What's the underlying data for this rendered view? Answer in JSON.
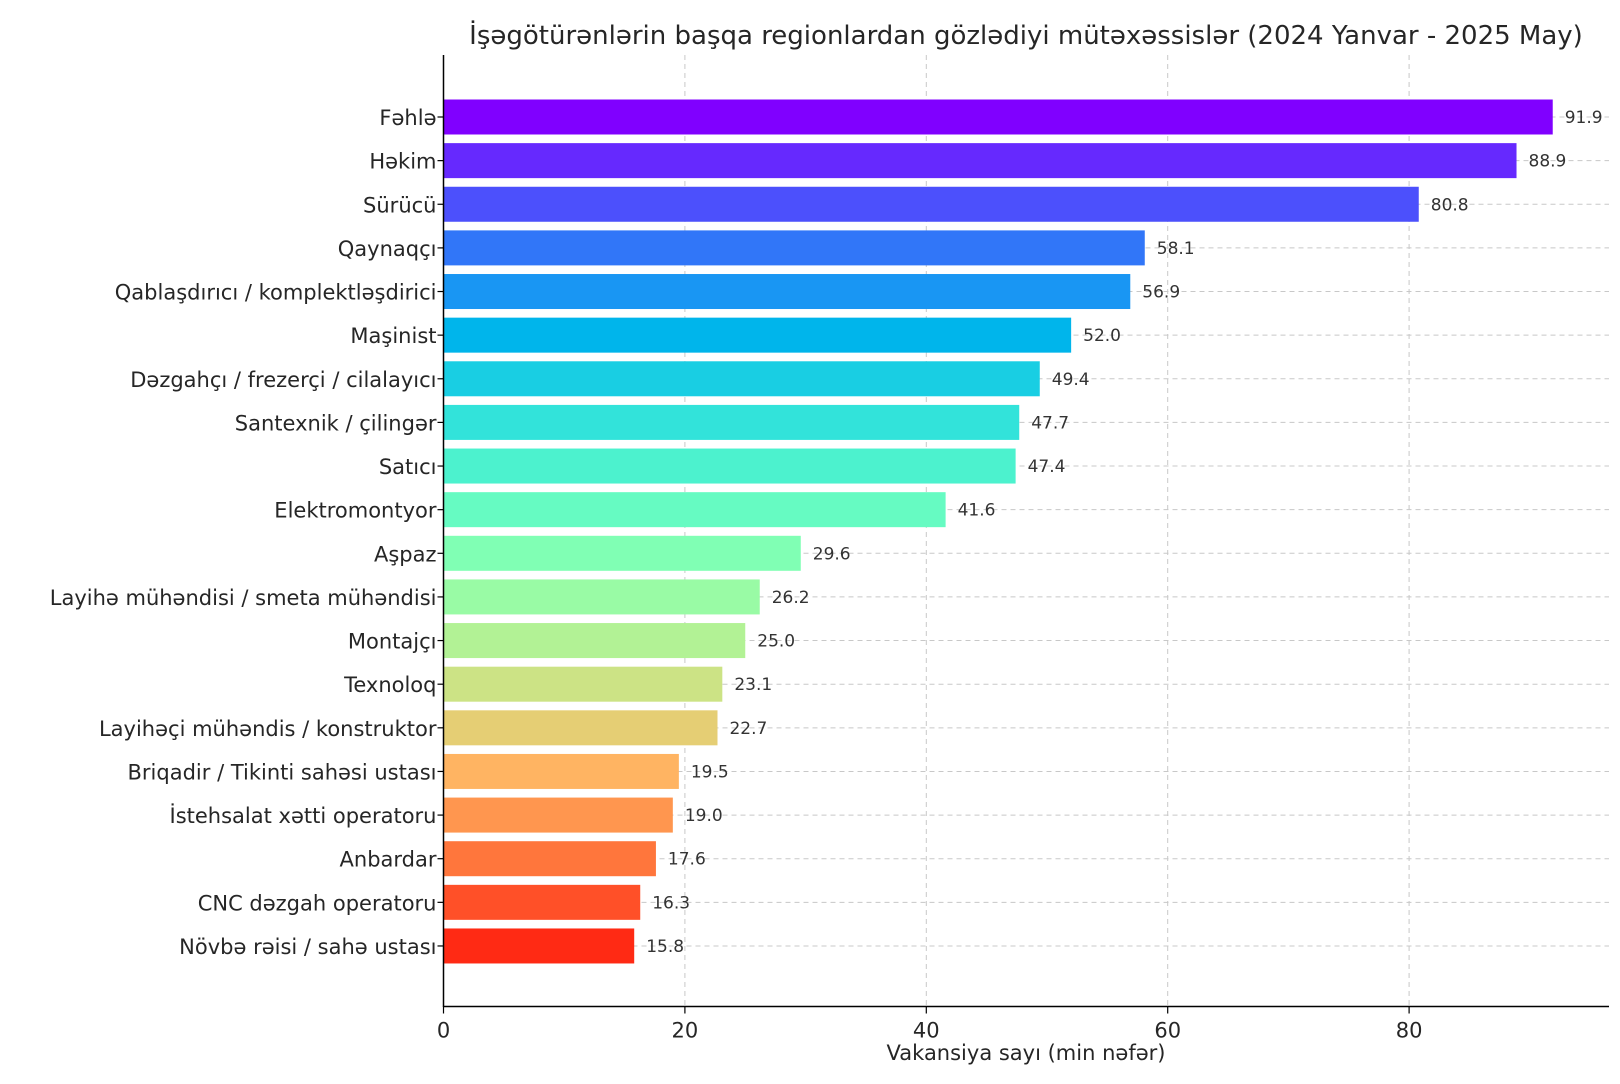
{
  "chart_data": {
    "type": "bar",
    "orientation": "horizontal",
    "title": "İşəgötürənlərin başqa regionlardan gözlədiyi mütəxəssislər (2024 Yanvar - 2025 May)",
    "xlabel": "Vakansiya sayı (min nəfər)",
    "ylabel": "",
    "xlim": [
      0,
      96.5
    ],
    "xticks": [
      0,
      20,
      40,
      60,
      80
    ],
    "grid": true,
    "categories": [
      "Fəhlə",
      "Həkim",
      "Sürücü",
      "Qaynaqçı",
      "Qablaşdırıcı / komplektləşdirici",
      "Maşinist",
      "Dəzgahçı / frezerçi / cilalayıcı",
      "Santexnik / çilingər",
      "Satıcı",
      "Elektromontyor",
      "Aşpaz",
      "Layihə mühəndisi / smeta mühəndisi",
      "Montajçı",
      "Texnoloq",
      "Layihəçi mühəndis / konstruktor",
      "Briqadir / Tikinti sahəsi ustası",
      "İstehsalat xətti operatoru",
      "Anbardar",
      "CNC dəzgah operatoru",
      "Növbə rəisi / sahə ustası"
    ],
    "values": [
      91.9,
      88.9,
      80.8,
      58.1,
      56.9,
      52.0,
      49.4,
      47.7,
      47.4,
      41.6,
      29.6,
      26.2,
      25.0,
      23.1,
      22.7,
      19.5,
      19.0,
      17.6,
      16.3,
      15.8
    ],
    "value_labels": [
      "91.9",
      "88.9",
      "80.8",
      "58.1",
      "56.9",
      "52.0",
      "49.4",
      "47.7",
      "47.4",
      "41.6",
      "29.6",
      "26.2",
      "25.0",
      "23.1",
      "22.7",
      "19.5",
      "19.0",
      "17.6",
      "16.3",
      "15.8"
    ],
    "colors": [
      "#8000ff",
      "#6629fe",
      "#4c50fc",
      "#3176f8",
      "#1996f3",
      "#00b5eb",
      "#19cee3",
      "#32e3da",
      "#4cf2ce",
      "#66fbc2",
      "#80ffb4",
      "#99fba5",
      "#b2f295",
      "#cce385",
      "#e5ce74",
      "#ffb462",
      "#ff964f",
      "#ff763c",
      "#ff5028",
      "#ff2a14"
    ]
  }
}
